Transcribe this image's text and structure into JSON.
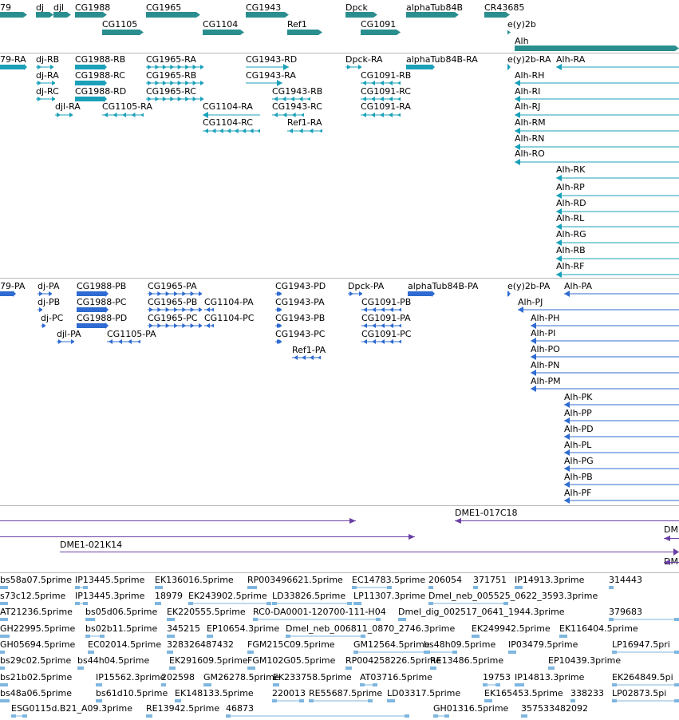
{
  "colors": {
    "gene": "#2a8e8e",
    "transcript": "#1aa1b9",
    "protein": "#2f6bd1",
    "clone": "#6a3fa4",
    "est": "#7fb6df",
    "separator": "#b8b8b8"
  },
  "tracks": [
    {
      "name": "genes",
      "items": [
        {
          "label": "79",
          "kind": "gene",
          "label_row": 0,
          "bar_row": 0
        },
        {
          "label": "dj",
          "kind": "gene",
          "label_row": 0,
          "bar_row": 0
        },
        {
          "label": "djl",
          "kind": "gene",
          "label_row": 0,
          "bar_row": 0
        },
        {
          "label": "CG1988",
          "kind": "gene",
          "label_row": 0,
          "bar_row": 0
        },
        {
          "label": "CG1965",
          "kind": "gene",
          "label_row": 0,
          "bar_row": 0
        },
        {
          "label": "CG1943",
          "kind": "gene",
          "label_row": 0,
          "bar_row": 0
        },
        {
          "label": "Dpck",
          "kind": "gene",
          "label_row": 0,
          "bar_row": 0
        },
        {
          "label": "alphaTub84B",
          "kind": "gene",
          "label_row": 0,
          "bar_row": 0
        },
        {
          "label": "CR43685",
          "kind": "gene",
          "label_row": 0,
          "bar_row": 0
        },
        {
          "label": "CG1105",
          "kind": "gene",
          "label_row": 1,
          "bar_row": 1
        },
        {
          "label": "CG1104",
          "kind": "gene",
          "label_row": 1,
          "bar_row": 1
        },
        {
          "label": "Ref1",
          "kind": "gene",
          "label_row": 1,
          "bar_row": 1
        },
        {
          "label": "CG1091",
          "kind": "gene",
          "label_row": 1,
          "bar_row": 1
        },
        {
          "label": "e(y)2b",
          "kind": "gene",
          "label_row": 1,
          "bar_row": 1
        },
        {
          "label": "Alh",
          "kind": "gene",
          "label_row": 2,
          "bar_row": 2
        }
      ]
    },
    {
      "name": "transcripts",
      "items": [
        {
          "label": "79-RA"
        },
        {
          "label": "dj-RB"
        },
        {
          "label": "dj-RA"
        },
        {
          "label": "dj-RC"
        },
        {
          "label": "djl-RA"
        },
        {
          "label": "CG1988-RB"
        },
        {
          "label": "CG1988-RC"
        },
        {
          "label": "CG1988-RD"
        },
        {
          "label": "CG1965-RA"
        },
        {
          "label": "CG1965-RB"
        },
        {
          "label": "CG1965-RC"
        },
        {
          "label": "CG1105-RA"
        },
        {
          "label": "CG1104-RA"
        },
        {
          "label": "CG1104-RC"
        },
        {
          "label": "CG1943-RD"
        },
        {
          "label": "CG1943-RA"
        },
        {
          "label": "CG1943-RB"
        },
        {
          "label": "CG1943-RC"
        },
        {
          "label": "Ref1-RA"
        },
        {
          "label": "Dpck-RA"
        },
        {
          "label": "CG1091-RB"
        },
        {
          "label": "CG1091-RC"
        },
        {
          "label": "CG1091-RA"
        },
        {
          "label": "alphaTub84B-RA"
        },
        {
          "label": "e(y)2b-RA"
        },
        {
          "label": "Alh-RA"
        },
        {
          "label": "Alh-RH"
        },
        {
          "label": "Alh-RI"
        },
        {
          "label": "Alh-RJ"
        },
        {
          "label": "Alh-RM"
        },
        {
          "label": "Alh-RN"
        },
        {
          "label": "Alh-RO"
        },
        {
          "label": "Alh-RK"
        },
        {
          "label": "Alh-RP"
        },
        {
          "label": "Alh-RD"
        },
        {
          "label": "Alh-RL"
        },
        {
          "label": "Alh-RG"
        },
        {
          "label": "Alh-RB"
        },
        {
          "label": "Alh-RF"
        }
      ]
    },
    {
      "name": "proteins",
      "items": [
        {
          "label": "79-PA"
        },
        {
          "label": "dj-PA"
        },
        {
          "label": "dj-PB"
        },
        {
          "label": "dj-PC"
        },
        {
          "label": "djl-PA"
        },
        {
          "label": "CG1988-PB"
        },
        {
          "label": "CG1988-PC"
        },
        {
          "label": "CG1988-PD"
        },
        {
          "label": "CG1965-PA"
        },
        {
          "label": "CG1965-PB"
        },
        {
          "label": "CG1965-PC"
        },
        {
          "label": "CG1105-PA"
        },
        {
          "label": "CG1104-PA"
        },
        {
          "label": "CG1104-PC"
        },
        {
          "label": "CG1943-PD"
        },
        {
          "label": "CG1943-PA"
        },
        {
          "label": "CG1943-PB"
        },
        {
          "label": "CG1943-PC"
        },
        {
          "label": "Ref1-PA"
        },
        {
          "label": "Dpck-PA"
        },
        {
          "label": "CG1091-PB"
        },
        {
          "label": "CG1091-PA"
        },
        {
          "label": "CG1091-PC"
        },
        {
          "label": "alphaTub84B-PA"
        },
        {
          "label": "e(y)2b-PA"
        },
        {
          "label": "Alh-PA"
        },
        {
          "label": "Alh-PJ"
        },
        {
          "label": "Alh-PH"
        },
        {
          "label": "Alh-PI"
        },
        {
          "label": "Alh-PO"
        },
        {
          "label": "Alh-PN"
        },
        {
          "label": "Alh-PM"
        },
        {
          "label": "Alh-PK"
        },
        {
          "label": "Alh-PP"
        },
        {
          "label": "Alh-PD"
        },
        {
          "label": "Alh-PL"
        },
        {
          "label": "Alh-PG"
        },
        {
          "label": "Alh-PB"
        },
        {
          "label": "Alh-PF"
        }
      ]
    },
    {
      "name": "clones",
      "items": [
        {
          "label": ""
        },
        {
          "label": "DME1-017C18"
        },
        {
          "label": ""
        },
        {
          "label": "DM"
        },
        {
          "label": "DME1-021K14"
        },
        {
          "label": "DM"
        }
      ]
    },
    {
      "name": "ests",
      "items": [
        {
          "label": "bs58a07.5prime"
        },
        {
          "label": "IP13445.5prime"
        },
        {
          "label": "EK136016.5prime"
        },
        {
          "label": "RP003496621.5prime"
        },
        {
          "label": "EC14783.5prime"
        },
        {
          "label": "206054"
        },
        {
          "label": "371751"
        },
        {
          "label": "IP14913.3prime"
        },
        {
          "label": "314443"
        },
        {
          "label": "s73c12.5prime"
        },
        {
          "label": "IP13445.3prime"
        },
        {
          "label": "18979"
        },
        {
          "label": "EK243902.5prime"
        },
        {
          "label": "LD33826.5prime"
        },
        {
          "label": "LP11307.3prime"
        },
        {
          "label": "Dmel_neb_005525_0622_3593.3prime"
        },
        {
          "label": "AT21236.5prime"
        },
        {
          "label": "bs05d06.5prime"
        },
        {
          "label": "EK220555.5prime"
        },
        {
          "label": "RC0-DA0001-120700-111-H04"
        },
        {
          "label": "Dmel_dig_002517_0641_1944.3prime"
        },
        {
          "label": "379683"
        },
        {
          "label": "GH22995.5prime"
        },
        {
          "label": "bs02b11.5prime"
        },
        {
          "label": "345215"
        },
        {
          "label": "EP10654.3prime"
        },
        {
          "label": "Dmel_neb_006811_0870_2746.3prime"
        },
        {
          "label": "EK249942.5prime"
        },
        {
          "label": "EK116404.5prime"
        },
        {
          "label": "GH05694.5prime"
        },
        {
          "label": "EC02014.5prime"
        },
        {
          "label": "328326487432"
        },
        {
          "label": "FGM215C09.5prime"
        },
        {
          "label": "GM12564.5prime"
        },
        {
          "label": "bs48h09.5prime"
        },
        {
          "label": "IP03479.5prime"
        },
        {
          "label": "LP16947.5pri"
        },
        {
          "label": "bs29c02.5prime"
        },
        {
          "label": "bs44h04.5prime"
        },
        {
          "label": "EK291609.5prime"
        },
        {
          "label": "FGM102G05.5prime"
        },
        {
          "label": "RP004258226.5prime"
        },
        {
          "label": "RE13486.5prime"
        },
        {
          "label": "EP10439.3prime"
        },
        {
          "label": "bs21b02.5prime"
        },
        {
          "label": "IP15562.3prime"
        },
        {
          "label": "202598"
        },
        {
          "label": "GM26278.5prime"
        },
        {
          "label": "EK233758.5prime"
        },
        {
          "label": "AT03716.5prime"
        },
        {
          "label": "19753"
        },
        {
          "label": "IP14813.3prime"
        },
        {
          "label": "EK264849.5pi"
        },
        {
          "label": "bs48a06.5prime"
        },
        {
          "label": "bs61d10.5prime"
        },
        {
          "label": "EK148133.5prime"
        },
        {
          "label": "220013"
        },
        {
          "label": "RE55687.5prime"
        },
        {
          "label": "LD03317.5prime"
        },
        {
          "label": "EK165453.5prime"
        },
        {
          "label": "338233"
        },
        {
          "label": "LP02873.5pi"
        },
        {
          "label": "ESG0115d.B21_A09.3prime"
        },
        {
          "label": "RE13942.5prime"
        },
        {
          "label": "46873"
        },
        {
          "label": "GH01316.5prime"
        },
        {
          "label": "357533482092"
        }
      ]
    }
  ]
}
